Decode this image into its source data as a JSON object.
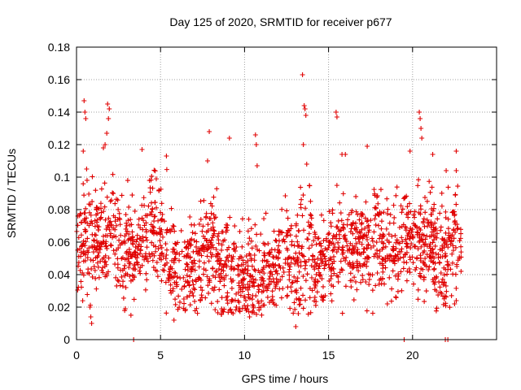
{
  "colors": {
    "series": "#e00000",
    "axis": "#000000",
    "grid": "#a0a0a0"
  },
  "chart_data": {
    "type": "scatter",
    "title": "Day 125 of 2020, SRMTID for receiver p677",
    "xlabel": "GPS time / hours",
    "ylabel": "SRMTID / TECUs",
    "xlim": [
      0,
      25
    ],
    "ylim": [
      0,
      0.18
    ],
    "xticks": [
      0,
      5,
      10,
      15,
      20
    ],
    "xtick_labels": [
      "0",
      "5",
      "10",
      "15",
      "20"
    ],
    "yticks": [
      0,
      0.02,
      0.04,
      0.06,
      0.08,
      0.1,
      0.12,
      0.14,
      0.16,
      0.18
    ],
    "ytick_labels": [
      "0",
      "0.02",
      "0.04",
      "0.06",
      "0.08",
      "0.1",
      "0.12",
      "0.14",
      "0.16",
      "0.18"
    ],
    "grid": true,
    "marker": "+",
    "trend": [
      [
        0.0,
        0.05
      ],
      [
        0.5,
        0.06
      ],
      [
        1.0,
        0.06
      ],
      [
        1.5,
        0.065
      ],
      [
        2.0,
        0.072
      ],
      [
        2.5,
        0.058
      ],
      [
        3.0,
        0.056
      ],
      [
        3.5,
        0.05
      ],
      [
        4.0,
        0.062
      ],
      [
        4.5,
        0.068
      ],
      [
        5.0,
        0.063
      ],
      [
        5.5,
        0.055
      ],
      [
        6.0,
        0.045
      ],
      [
        6.5,
        0.042
      ],
      [
        7.0,
        0.045
      ],
      [
        7.5,
        0.05
      ],
      [
        8.0,
        0.055
      ],
      [
        8.5,
        0.045
      ],
      [
        9.0,
        0.042
      ],
      [
        9.5,
        0.04
      ],
      [
        10.0,
        0.04
      ],
      [
        10.5,
        0.042
      ],
      [
        11.0,
        0.04
      ],
      [
        11.5,
        0.043
      ],
      [
        12.0,
        0.048
      ],
      [
        12.5,
        0.05
      ],
      [
        13.0,
        0.045
      ],
      [
        13.5,
        0.055
      ],
      [
        14.0,
        0.05
      ],
      [
        14.5,
        0.045
      ],
      [
        15.0,
        0.05
      ],
      [
        15.5,
        0.055
      ],
      [
        16.0,
        0.06
      ],
      [
        16.5,
        0.058
      ],
      [
        17.0,
        0.06
      ],
      [
        17.5,
        0.058
      ],
      [
        18.0,
        0.062
      ],
      [
        18.5,
        0.055
      ],
      [
        19.0,
        0.05
      ],
      [
        19.5,
        0.06
      ],
      [
        20.0,
        0.062
      ],
      [
        20.5,
        0.058
      ],
      [
        21.0,
        0.055
      ],
      [
        21.5,
        0.05
      ],
      [
        22.0,
        0.05
      ],
      [
        22.5,
        0.058
      ],
      [
        22.9,
        0.06
      ]
    ],
    "spread": 0.016,
    "point_count": 1900,
    "spikes": [
      [
        0.45,
        0.147
      ],
      [
        0.5,
        0.14
      ],
      [
        0.55,
        0.136
      ],
      [
        0.4,
        0.116
      ],
      [
        0.6,
        0.105
      ],
      [
        1.85,
        0.145
      ],
      [
        1.95,
        0.142
      ],
      [
        1.9,
        0.136
      ],
      [
        1.8,
        0.127
      ],
      [
        1.7,
        0.12
      ],
      [
        1.6,
        0.118
      ],
      [
        3.9,
        0.117
      ],
      [
        5.35,
        0.113
      ],
      [
        7.9,
        0.128
      ],
      [
        7.8,
        0.11
      ],
      [
        9.1,
        0.124
      ],
      [
        10.65,
        0.126
      ],
      [
        10.7,
        0.12
      ],
      [
        10.75,
        0.107
      ],
      [
        13.45,
        0.163
      ],
      [
        13.55,
        0.144
      ],
      [
        13.6,
        0.142
      ],
      [
        13.65,
        0.138
      ],
      [
        13.5,
        0.12
      ],
      [
        13.7,
        0.108
      ],
      [
        15.45,
        0.14
      ],
      [
        15.5,
        0.137
      ],
      [
        15.8,
        0.114
      ],
      [
        16.0,
        0.114
      ],
      [
        17.3,
        0.119
      ],
      [
        19.85,
        0.116
      ],
      [
        20.4,
        0.14
      ],
      [
        20.45,
        0.136
      ],
      [
        20.5,
        0.13
      ],
      [
        20.55,
        0.124
      ],
      [
        21.2,
        0.114
      ],
      [
        22.0,
        0.104
      ],
      [
        22.6,
        0.116
      ],
      [
        22.6,
        0.104
      ]
    ],
    "lows": [
      [
        0.9,
        0.01
      ],
      [
        0.85,
        0.014
      ],
      [
        0.8,
        0.02
      ],
      [
        2.9,
        0.019
      ],
      [
        5.8,
        0.012
      ],
      [
        10.3,
        0.014
      ],
      [
        13.05,
        0.008
      ],
      [
        13.2,
        0.016
      ],
      [
        18.5,
        0.022
      ],
      [
        22.5,
        0.022
      ],
      [
        22.6,
        0.024
      ]
    ],
    "zero_points": [
      3.4,
      19.5,
      21.95,
      22.1
    ]
  }
}
